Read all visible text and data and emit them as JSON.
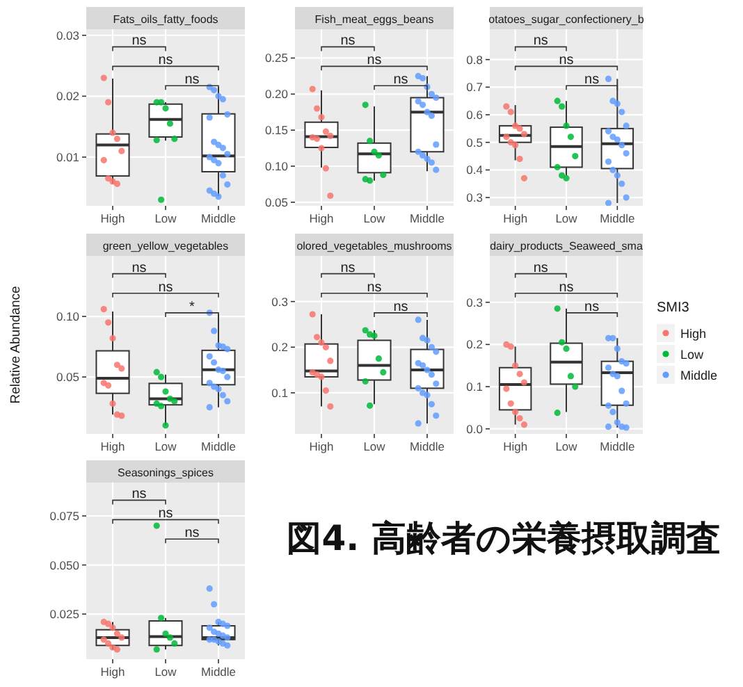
{
  "chart_data": [
    {
      "type": "box",
      "title": "Fats_oils_fatty_foods",
      "categories": [
        "High",
        "Low",
        "Middle"
      ],
      "ylim": [
        0.002,
        0.031
      ],
      "yticks": [
        0.01,
        0.02,
        0.03
      ],
      "grid": true,
      "annotations": [
        "ns",
        "ns",
        "ns"
      ],
      "boxes": [
        {
          "low": 0.0056,
          "q1": 0.0069,
          "median": 0.012,
          "q3": 0.0138,
          "high": 0.0229
        },
        {
          "low": 0.0127,
          "q1": 0.0133,
          "median": 0.0162,
          "q3": 0.0187,
          "high": 0.019
        },
        {
          "low": 0.0036,
          "q1": 0.0076,
          "median": 0.0102,
          "q3": 0.0171,
          "high": 0.0215
        }
      ],
      "series": [
        {
          "type": "scatter",
          "color": "#f8766d",
          "x": [
            "High",
            "High",
            "High",
            "High",
            "High",
            "High",
            "High",
            "High",
            "High"
          ],
          "values": [
            0.023,
            0.019,
            0.014,
            0.013,
            0.011,
            0.0095,
            0.0065,
            0.006,
            0.0056
          ]
        },
        {
          "type": "scatter",
          "color": "#00ba38",
          "x": [
            "Low",
            "Low",
            "Low",
            "Low",
            "Low",
            "Low",
            "Low"
          ],
          "values": [
            0.019,
            0.019,
            0.018,
            0.0155,
            0.013,
            0.0128,
            0.003
          ]
        },
        {
          "type": "scatter",
          "color": "#619cff",
          "x": [
            "Middle",
            "Middle",
            "Middle",
            "Middle",
            "Middle",
            "Middle",
            "Middle",
            "Middle",
            "Middle",
            "Middle",
            "Middle",
            "Middle",
            "Middle",
            "Middle",
            "Middle",
            "Middle",
            "Middle",
            "Middle"
          ],
          "values": [
            0.0215,
            0.021,
            0.02,
            0.0195,
            0.017,
            0.0165,
            0.0125,
            0.012,
            0.0115,
            0.0105,
            0.01,
            0.0095,
            0.009,
            0.007,
            0.0055,
            0.0045,
            0.004,
            0.0035
          ]
        }
      ]
    },
    {
      "type": "box",
      "title": "Fish_meat_eggs_beans",
      "categories": [
        "High",
        "Low",
        "Middle"
      ],
      "ylim": [
        0.045,
        0.29
      ],
      "yticks": [
        0.05,
        {
          "value": 0.1,
          "label": "0.10"
        },
        0.15,
        {
          "value": 0.2,
          "label": "0.20"
        },
        0.25
      ],
      "grid": true,
      "annotations": [
        "ns",
        "ns",
        "ns"
      ],
      "boxes": [
        {
          "low": 0.098,
          "q1": 0.126,
          "median": 0.141,
          "q3": 0.161,
          "high": 0.205
        },
        {
          "low": 0.08,
          "q1": 0.091,
          "median": 0.117,
          "q3": 0.132,
          "high": 0.183
        },
        {
          "low": 0.093,
          "q1": 0.12,
          "median": 0.175,
          "q3": 0.195,
          "high": 0.225
        }
      ],
      "series": [
        {
          "type": "scatter",
          "color": "#f8766d",
          "x": [
            "High",
            "High",
            "High",
            "High",
            "High",
            "High",
            "High",
            "High",
            "High",
            "High"
          ],
          "values": [
            0.207,
            0.18,
            0.168,
            0.148,
            0.142,
            0.14,
            0.138,
            0.125,
            0.097,
            0.059
          ]
        },
        {
          "type": "scatter",
          "color": "#00ba38",
          "x": [
            "Low",
            "Low",
            "Low",
            "Low",
            "Low",
            "Low",
            "Low"
          ],
          "values": [
            0.185,
            0.135,
            0.12,
            0.115,
            0.088,
            0.082,
            0.08
          ]
        },
        {
          "type": "scatter",
          "color": "#619cff",
          "x": [
            "Middle",
            "Middle",
            "Middle",
            "Middle",
            "Middle",
            "Middle",
            "Middle",
            "Middle",
            "Middle",
            "Middle",
            "Middle",
            "Middle",
            "Middle",
            "Middle",
            "Middle"
          ],
          "values": [
            0.225,
            0.222,
            0.21,
            0.2,
            0.195,
            0.19,
            0.185,
            0.175,
            0.17,
            0.13,
            0.12,
            0.115,
            0.11,
            0.105,
            0.095
          ]
        }
      ]
    },
    {
      "type": "box",
      "title": "otatoes_sugar_confectionery_b",
      "categories": [
        "High",
        "Low",
        "Middle"
      ],
      "ylim": [
        0.27,
        0.91
      ],
      "yticks": [
        0.3,
        0.4,
        0.5,
        0.6,
        0.7,
        0.8
      ],
      "grid": true,
      "annotations": [
        "ns",
        "ns",
        "ns"
      ],
      "boxes": [
        {
          "low": 0.435,
          "q1": 0.5,
          "median": 0.525,
          "q3": 0.56,
          "high": 0.635
        },
        {
          "low": 0.38,
          "q1": 0.41,
          "median": 0.485,
          "q3": 0.555,
          "high": 0.65
        },
        {
          "low": 0.28,
          "q1": 0.405,
          "median": 0.495,
          "q3": 0.55,
          "high": 0.73
        }
      ],
      "series": [
        {
          "type": "scatter",
          "color": "#f8766d",
          "x": [
            "High",
            "High",
            "High",
            "High",
            "High",
            "High",
            "High",
            "High",
            "High",
            "High"
          ],
          "values": [
            0.63,
            0.61,
            0.56,
            0.55,
            0.53,
            0.52,
            0.5,
            0.49,
            0.44,
            0.37
          ]
        },
        {
          "type": "scatter",
          "color": "#00ba38",
          "x": [
            "Low",
            "Low",
            "Low",
            "Low",
            "Low",
            "Low",
            "Low",
            "Low"
          ],
          "values": [
            0.65,
            0.63,
            0.56,
            0.52,
            0.45,
            0.41,
            0.38,
            0.37
          ]
        },
        {
          "type": "scatter",
          "color": "#619cff",
          "x": [
            "Middle",
            "Middle",
            "Middle",
            "Middle",
            "Middle",
            "Middle",
            "Middle",
            "Middle",
            "Middle",
            "Middle",
            "Middle",
            "Middle",
            "Middle",
            "Middle",
            "Middle",
            "Middle"
          ],
          "values": [
            0.73,
            0.65,
            0.64,
            0.61,
            0.56,
            0.54,
            0.52,
            0.51,
            0.49,
            0.46,
            0.43,
            0.4,
            0.38,
            0.35,
            0.3,
            0.28
          ]
        }
      ]
    },
    {
      "type": "box",
      "title": "green_yellow_vegetables",
      "ylabel": "Relative Abundance",
      "categories": [
        "High",
        "Low",
        "Middle"
      ],
      "ylim": [
        0.003,
        0.15
      ],
      "yticks": [
        0.05,
        {
          "value": 0.1,
          "label": "0.10"
        }
      ],
      "grid": true,
      "annotations": [
        "ns",
        "ns",
        "*"
      ],
      "boxes": [
        {
          "low": 0.019,
          "q1": 0.0365,
          "median": 0.049,
          "q3": 0.0716,
          "high": 0.104
        },
        {
          "low": 0.01,
          "q1": 0.027,
          "median": 0.032,
          "q3": 0.0447,
          "high": 0.052
        },
        {
          "low": 0.025,
          "q1": 0.0436,
          "median": 0.056,
          "q3": 0.072,
          "high": 0.102
        }
      ],
      "series": [
        {
          "type": "scatter",
          "color": "#f8766d",
          "x": [
            "High",
            "High",
            "High",
            "High",
            "High",
            "High",
            "High",
            "High",
            "High",
            "High"
          ],
          "values": [
            0.106,
            0.095,
            0.082,
            0.06,
            0.057,
            0.045,
            0.043,
            0.028,
            0.019,
            0.018
          ]
        },
        {
          "type": "scatter",
          "color": "#00ba38",
          "x": [
            "Low",
            "Low",
            "Low",
            "Low",
            "Low",
            "Low",
            "Low",
            "Low"
          ],
          "values": [
            0.054,
            0.05,
            0.038,
            0.032,
            0.03,
            0.028,
            0.026,
            0.01
          ]
        },
        {
          "type": "scatter",
          "color": "#619cff",
          "x": [
            "Middle",
            "Middle",
            "Middle",
            "Middle",
            "Middle",
            "Middle",
            "Middle",
            "Middle",
            "Middle",
            "Middle",
            "Middle",
            "Middle",
            "Middle",
            "Middle",
            "Middle",
            "Middle"
          ],
          "values": [
            0.103,
            0.088,
            0.076,
            0.075,
            0.073,
            0.067,
            0.062,
            0.056,
            0.055,
            0.05,
            0.045,
            0.042,
            0.04,
            0.035,
            0.03,
            0.025
          ]
        }
      ]
    },
    {
      "type": "box",
      "title": "olored_vegetables_mushrooms",
      "categories": [
        "High",
        "Low",
        "Middle"
      ],
      "ylim": [
        0.01,
        0.4
      ],
      "yticks": [
        0.1,
        0.2,
        0.3
      ],
      "grid": true,
      "annotations": [
        "ns",
        "ns",
        "ns"
      ],
      "boxes": [
        {
          "low": 0.07,
          "q1": 0.135,
          "median": 0.148,
          "q3": 0.207,
          "high": 0.272
        },
        {
          "low": 0.075,
          "q1": 0.128,
          "median": 0.16,
          "q3": 0.215,
          "high": 0.237
        },
        {
          "low": 0.033,
          "q1": 0.11,
          "median": 0.15,
          "q3": 0.195,
          "high": 0.26
        }
      ],
      "series": [
        {
          "type": "scatter",
          "color": "#f8766d",
          "x": [
            "High",
            "High",
            "High",
            "High",
            "High",
            "High",
            "High",
            "High",
            "High",
            "High"
          ],
          "values": [
            0.272,
            0.222,
            0.21,
            0.2,
            0.17,
            0.145,
            0.14,
            0.135,
            0.105,
            0.07
          ]
        },
        {
          "type": "scatter",
          "color": "#00ba38",
          "x": [
            "Low",
            "Low",
            "Low",
            "Low",
            "Low",
            "Low",
            "Low"
          ],
          "values": [
            0.237,
            0.228,
            0.225,
            0.175,
            0.145,
            0.125,
            0.072
          ]
        },
        {
          "type": "scatter",
          "color": "#619cff",
          "x": [
            "Middle",
            "Middle",
            "Middle",
            "Middle",
            "Middle",
            "Middle",
            "Middle",
            "Middle",
            "Middle",
            "Middle",
            "Middle",
            "Middle",
            "Middle",
            "Middle",
            "Middle",
            "Middle"
          ],
          "values": [
            0.26,
            0.22,
            0.215,
            0.2,
            0.19,
            0.165,
            0.16,
            0.15,
            0.14,
            0.12,
            0.11,
            0.1,
            0.095,
            0.075,
            0.05,
            0.033
          ]
        }
      ]
    },
    {
      "type": "box",
      "title": "dairy_products_Seaweed_sma",
      "categories": [
        "High",
        "Low",
        "Middle"
      ],
      "ylim": [
        -0.012,
        0.41
      ],
      "yticks": [
        {
          "value": 0,
          "label": "0.0"
        },
        0.1,
        0.2,
        0.3
      ],
      "grid": true,
      "legend": "right",
      "legend_title": "SMI3",
      "annotations": [
        "ns",
        "ns",
        "ns"
      ],
      "boxes": [
        {
          "low": 0.01,
          "q1": 0.045,
          "median": 0.105,
          "q3": 0.145,
          "high": 0.195
        },
        {
          "low": 0.04,
          "q1": 0.106,
          "median": 0.158,
          "q3": 0.203,
          "high": 0.285
        },
        {
          "low": 0.003,
          "q1": 0.056,
          "median": 0.133,
          "q3": 0.16,
          "high": 0.215
        }
      ],
      "series": [
        {
          "type": "scatter",
          "name": "High",
          "color": "#f8766d",
          "x": [
            "High",
            "High",
            "High",
            "High",
            "High",
            "High",
            "High",
            "High",
            "High",
            "High"
          ],
          "values": [
            0.2,
            0.195,
            0.15,
            0.13,
            0.11,
            0.095,
            0.06,
            0.04,
            0.025,
            0.01
          ]
        },
        {
          "type": "scatter",
          "name": "Low",
          "color": "#00ba38",
          "x": [
            "Low",
            "Low",
            "Low",
            "Low",
            "Low",
            "Low"
          ],
          "values": [
            0.285,
            0.205,
            0.19,
            0.125,
            0.1,
            0.038
          ]
        },
        {
          "type": "scatter",
          "name": "Middle",
          "color": "#619cff",
          "x": [
            "Middle",
            "Middle",
            "Middle",
            "Middle",
            "Middle",
            "Middle",
            "Middle",
            "Middle",
            "Middle",
            "Middle",
            "Middle",
            "Middle",
            "Middle",
            "Middle",
            "Middle",
            "Middle"
          ],
          "values": [
            0.215,
            0.215,
            0.19,
            0.16,
            0.155,
            0.145,
            0.13,
            0.125,
            0.09,
            0.06,
            0.055,
            0.04,
            0.015,
            0.005,
            0.003,
            0.005
          ]
        }
      ]
    },
    {
      "type": "box",
      "title": "Seasonings_spices",
      "categories": [
        "High",
        "Low",
        "Middle"
      ],
      "ylim": [
        0.002,
        0.092
      ],
      "yticks": [
        0.025,
        {
          "value": 0.05,
          "label": "0.050"
        },
        0.075
      ],
      "grid": true,
      "annotations": [
        "ns",
        "ns",
        "ns",
        "図4. 高齢者の栄養摂取調査"
      ],
      "boxes": [
        {
          "low": 0.007,
          "q1": 0.009,
          "median": 0.013,
          "q3": 0.017,
          "high": 0.021
        },
        {
          "low": 0.007,
          "q1": 0.009,
          "median": 0.0135,
          "q3": 0.0215,
          "high": 0.023
        },
        {
          "low": 0.009,
          "q1": 0.012,
          "median": 0.013,
          "q3": 0.019,
          "high": 0.021
        }
      ],
      "series": [
        {
          "type": "scatter",
          "color": "#f8766d",
          "x": [
            "High",
            "High",
            "High",
            "High",
            "High",
            "High",
            "High",
            "High",
            "High"
          ],
          "values": [
            0.021,
            0.02,
            0.018,
            0.015,
            0.013,
            0.012,
            0.01,
            0.008,
            0.007
          ]
        },
        {
          "type": "scatter",
          "color": "#00ba38",
          "x": [
            "Low",
            "Low",
            "Low",
            "Low",
            "Low",
            "Low"
          ],
          "values": [
            0.07,
            0.023,
            0.015,
            0.013,
            0.01,
            0.007
          ]
        },
        {
          "type": "scatter",
          "color": "#619cff",
          "x": [
            "Middle",
            "Middle",
            "Middle",
            "Middle",
            "Middle",
            "Middle",
            "Middle",
            "Middle",
            "Middle",
            "Middle",
            "Middle",
            "Middle",
            "Middle",
            "Middle",
            "Middle"
          ],
          "values": [
            0.038,
            0.03,
            0.021,
            0.02,
            0.019,
            0.018,
            0.016,
            0.015,
            0.014,
            0.013,
            0.012,
            0.012,
            0.011,
            0.01,
            0.009
          ]
        }
      ]
    }
  ]
}
